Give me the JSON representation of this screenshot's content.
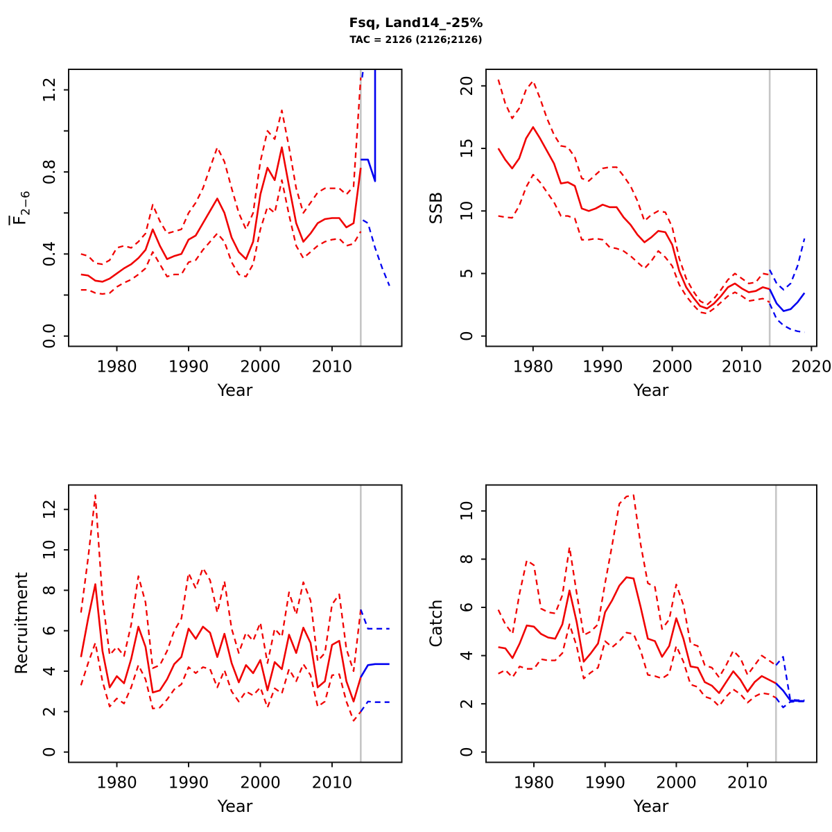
{
  "header": {
    "title": "Fsq, Land14_-25%",
    "subtitle": "TAC = 2126 (2126;2126)"
  },
  "colors": {
    "historical": "#f00000",
    "forecast": "#0000f0",
    "forecast_divider": "#c6c6c6",
    "axis": "#111111"
  },
  "chart_data": [
    {
      "name": "f-bar-2-6",
      "type": "line",
      "xlabel": "Year",
      "ylabel": "F",
      "ylabel_sub": "2−6",
      "xlim": [
        1975,
        2018
      ],
      "ylim": [
        0,
        1.25
      ],
      "forecast_year": 2014,
      "xticks": [
        1980,
        1990,
        2000,
        2010
      ],
      "xtick_labels": [
        "1980",
        "1990",
        "2000",
        "2010"
      ],
      "yticks": [
        0,
        0.2,
        0.4,
        0.6,
        0.8,
        1.0,
        1.2
      ],
      "ytick_labels": [
        "0.0",
        "",
        "0.4",
        "",
        "0.8",
        "",
        "1.2"
      ],
      "legend": "none",
      "grid": false,
      "series": [
        {
          "name": "f-median-historical",
          "color": "#f00000",
          "dashed": false,
          "start_year": 1975,
          "values": [
            0.3,
            0.295,
            0.27,
            0.265,
            0.28,
            0.305,
            0.33,
            0.35,
            0.38,
            0.42,
            0.52,
            0.44,
            0.375,
            0.39,
            0.4,
            0.47,
            0.49,
            0.55,
            0.61,
            0.67,
            0.6,
            0.48,
            0.41,
            0.375,
            0.46,
            0.69,
            0.82,
            0.76,
            0.92,
            0.73,
            0.55,
            0.46,
            0.5,
            0.55,
            0.57,
            0.575,
            0.575,
            0.53,
            0.55,
            0.82
          ]
        },
        {
          "name": "f-upper-ci-historical",
          "color": "#f00000",
          "dashed": true,
          "start_year": 1975,
          "values": [
            0.4,
            0.39,
            0.355,
            0.35,
            0.37,
            0.43,
            0.44,
            0.43,
            0.46,
            0.5,
            0.64,
            0.56,
            0.5,
            0.51,
            0.52,
            0.6,
            0.65,
            0.72,
            0.82,
            0.92,
            0.85,
            0.72,
            0.6,
            0.52,
            0.6,
            0.85,
            1.0,
            0.96,
            1.1,
            0.92,
            0.72,
            0.6,
            0.65,
            0.7,
            0.72,
            0.72,
            0.72,
            0.69,
            0.73,
            1.26
          ]
        },
        {
          "name": "f-lower-ci-historical",
          "color": "#f00000",
          "dashed": true,
          "start_year": 1975,
          "values": [
            0.225,
            0.225,
            0.21,
            0.205,
            0.21,
            0.24,
            0.26,
            0.275,
            0.3,
            0.33,
            0.41,
            0.35,
            0.29,
            0.3,
            0.3,
            0.36,
            0.37,
            0.42,
            0.46,
            0.5,
            0.46,
            0.36,
            0.3,
            0.29,
            0.35,
            0.52,
            0.63,
            0.6,
            0.76,
            0.59,
            0.44,
            0.38,
            0.41,
            0.44,
            0.46,
            0.47,
            0.475,
            0.44,
            0.45,
            0.51
          ]
        },
        {
          "name": "f-median-forecast",
          "color": "#0000f0",
          "dashed": false,
          "points": [
            [
              2014,
              0.86
            ],
            [
              2015,
              0.86
            ],
            [
              2016,
              0.755
            ],
            [
              2016,
              1.5
            ]
          ]
        },
        {
          "name": "f-upper-ci-forecast",
          "color": "#0000f0",
          "dashed": true,
          "points": [
            [
              2014.2,
              1.26
            ],
            [
              2015,
              1.5
            ]
          ]
        },
        {
          "name": "f-lower-ci-forecast",
          "color": "#0000f0",
          "dashed": true,
          "points": [
            [
              2014.3,
              0.565
            ],
            [
              2015,
              0.55
            ],
            [
              2016,
              0.43
            ],
            [
              2017,
              0.33
            ],
            [
              2018,
              0.245
            ]
          ]
        }
      ]
    },
    {
      "name": "ssb",
      "type": "line",
      "xlabel": "Year",
      "ylabel": "SSB",
      "ylabel_sub": "",
      "xlim": [
        1975,
        2019
      ],
      "ylim": [
        0,
        20.5
      ],
      "forecast_year": 2014,
      "xticks": [
        1980,
        1990,
        2000,
        2010,
        2020
      ],
      "xtick_labels": [
        "1980",
        "1990",
        "2000",
        "2010",
        "2020"
      ],
      "yticks": [
        0,
        5,
        10,
        15,
        20
      ],
      "ytick_labels": [
        "0",
        "5",
        "10",
        "15",
        "20"
      ],
      "legend": "none",
      "grid": false,
      "series": [
        {
          "name": "ssb-median-historical",
          "color": "#f00000",
          "dashed": false,
          "start_year": 1975,
          "values": [
            15.0,
            14.1,
            13.4,
            14.2,
            15.8,
            16.7,
            15.8,
            14.8,
            13.8,
            12.2,
            12.3,
            12.0,
            10.2,
            10.0,
            10.2,
            10.5,
            10.3,
            10.3,
            9.5,
            8.9,
            8.1,
            7.5,
            7.9,
            8.4,
            8.3,
            7.3,
            5.2,
            3.9,
            3.1,
            2.4,
            2.2,
            2.6,
            3.2,
            3.9,
            4.2,
            3.8,
            3.5,
            3.6,
            3.9,
            3.75
          ]
        },
        {
          "name": "ssb-upper-ci-historical",
          "color": "#f00000",
          "dashed": true,
          "start_year": 1975,
          "values": [
            20.5,
            18.6,
            17.4,
            18.2,
            19.7,
            20.4,
            19.0,
            17.4,
            16.1,
            15.2,
            15.1,
            14.3,
            12.6,
            12.4,
            12.9,
            13.4,
            13.5,
            13.5,
            12.8,
            12.0,
            10.8,
            9.2,
            9.7,
            10.0,
            9.9,
            8.7,
            6.2,
            4.6,
            3.6,
            2.8,
            2.5,
            3.0,
            3.7,
            4.5,
            5.0,
            4.6,
            4.2,
            4.3,
            5.0,
            4.9
          ]
        },
        {
          "name": "ssb-lower-ci-historical",
          "color": "#f00000",
          "dashed": true,
          "start_year": 1975,
          "values": [
            9.6,
            9.5,
            9.45,
            10.4,
            11.9,
            12.9,
            12.3,
            11.5,
            10.7,
            9.6,
            9.6,
            9.4,
            7.7,
            7.7,
            7.8,
            7.7,
            7.1,
            7.0,
            6.8,
            6.4,
            5.9,
            5.4,
            6.0,
            6.8,
            6.3,
            5.6,
            4.1,
            3.2,
            2.5,
            1.9,
            1.8,
            2.2,
            2.7,
            3.2,
            3.5,
            3.2,
            2.8,
            2.9,
            3.0,
            2.7
          ]
        },
        {
          "name": "ssb-median-forecast",
          "color": "#0000f0",
          "dashed": false,
          "points": [
            [
              2014,
              3.75
            ],
            [
              2015,
              2.6
            ],
            [
              2016,
              2.0
            ],
            [
              2017,
              2.15
            ],
            [
              2018,
              2.7
            ],
            [
              2019,
              3.45
            ]
          ]
        },
        {
          "name": "ssb-upper-ci-forecast",
          "color": "#0000f0",
          "dashed": true,
          "points": [
            [
              2014,
              5.3
            ],
            [
              2015,
              4.2
            ],
            [
              2016,
              3.7
            ],
            [
              2017,
              4.2
            ],
            [
              2018,
              5.6
            ],
            [
              2019,
              7.8
            ]
          ]
        },
        {
          "name": "ssb-lower-ci-forecast",
          "color": "#0000f0",
          "dashed": true,
          "points": [
            [
              2014,
              2.6
            ],
            [
              2015,
              1.35
            ],
            [
              2016,
              0.85
            ],
            [
              2017,
              0.55
            ],
            [
              2018,
              0.38
            ],
            [
              2019,
              0.3
            ]
          ]
        }
      ]
    },
    {
      "name": "recruitment",
      "type": "line",
      "xlabel": "Year",
      "ylabel": "Recruitment",
      "ylabel_sub": "",
      "xlim": [
        1975,
        2018
      ],
      "ylim": [
        0,
        12.7
      ],
      "forecast_year": 2014,
      "xticks": [
        1980,
        1990,
        2000,
        2010
      ],
      "xtick_labels": [
        "1980",
        "1990",
        "2000",
        "2010"
      ],
      "yticks": [
        0,
        2,
        4,
        6,
        8,
        10,
        12
      ],
      "ytick_labels": [
        "0",
        "2",
        "4",
        "6",
        "8",
        "10",
        "12"
      ],
      "legend": "none",
      "grid": false,
      "series": [
        {
          "name": "recruitment-median-historical",
          "color": "#f00000",
          "dashed": false,
          "start_year": 1975,
          "values": [
            4.7,
            6.6,
            8.3,
            5.0,
            3.2,
            3.75,
            3.4,
            4.6,
            6.2,
            5.2,
            2.95,
            3.05,
            3.6,
            4.35,
            4.7,
            6.1,
            5.6,
            6.2,
            5.9,
            4.7,
            5.85,
            4.4,
            3.45,
            4.3,
            3.9,
            4.55,
            3.05,
            4.45,
            4.1,
            5.8,
            4.9,
            6.15,
            5.4,
            3.2,
            3.5,
            5.3,
            5.5,
            3.5,
            2.5,
            3.7
          ]
        },
        {
          "name": "recruitment-upper-ci-historical",
          "color": "#f00000",
          "dashed": true,
          "start_year": 1975,
          "values": [
            6.9,
            9.6,
            12.7,
            7.6,
            4.8,
            5.2,
            4.75,
            6.3,
            8.7,
            7.4,
            4.15,
            4.3,
            5.0,
            6.0,
            6.6,
            8.85,
            8.1,
            9.1,
            8.5,
            6.9,
            8.45,
            6.1,
            4.9,
            5.9,
            5.5,
            6.4,
            4.4,
            6.1,
            5.7,
            7.9,
            6.8,
            8.4,
            7.5,
            4.5,
            4.9,
            7.3,
            7.8,
            5.1,
            4.0,
            7.05
          ]
        },
        {
          "name": "recruitment-lower-ci-historical",
          "color": "#f00000",
          "dashed": true,
          "start_year": 1975,
          "values": [
            3.3,
            4.4,
            5.4,
            3.5,
            2.25,
            2.65,
            2.4,
            3.2,
            4.3,
            3.6,
            2.15,
            2.2,
            2.6,
            3.1,
            3.35,
            4.2,
            3.9,
            4.2,
            4.1,
            3.2,
            4.05,
            3.0,
            2.5,
            3.0,
            2.8,
            3.2,
            2.2,
            3.15,
            2.9,
            4.1,
            3.5,
            4.35,
            3.8,
            2.25,
            2.5,
            3.8,
            3.85,
            2.5,
            1.55,
            2.0
          ]
        },
        {
          "name": "recruitment-median-forecast",
          "color": "#0000f0",
          "dashed": false,
          "points": [
            [
              2014,
              3.7
            ],
            [
              2015,
              4.3
            ],
            [
              2016,
              4.35
            ],
            [
              2017,
              4.35
            ],
            [
              2018,
              4.35
            ]
          ]
        },
        {
          "name": "recruitment-upper-ci-forecast",
          "color": "#0000f0",
          "dashed": true,
          "points": [
            [
              2014,
              7.05
            ],
            [
              2015,
              6.1
            ],
            [
              2016,
              6.1
            ],
            [
              2017,
              6.1
            ],
            [
              2018,
              6.1
            ]
          ]
        },
        {
          "name": "recruitment-lower-ci-forecast",
          "color": "#0000f0",
          "dashed": true,
          "points": [
            [
              2014,
              2.0
            ],
            [
              2015,
              2.5
            ],
            [
              2016,
              2.47
            ],
            [
              2017,
              2.47
            ],
            [
              2018,
              2.47
            ]
          ]
        }
      ]
    },
    {
      "name": "catch",
      "type": "line",
      "xlabel": "Year",
      "ylabel": "Catch",
      "ylabel_sub": "",
      "xlim": [
        1975,
        2018
      ],
      "ylim": [
        0,
        10.65
      ],
      "forecast_year": 2014,
      "xticks": [
        1980,
        1990,
        2000,
        2010
      ],
      "xtick_labels": [
        "1980",
        "1990",
        "2000",
        "2010"
      ],
      "yticks": [
        0,
        2,
        4,
        6,
        8,
        10
      ],
      "ytick_labels": [
        "0",
        "2",
        "4",
        "6",
        "8",
        "10"
      ],
      "legend": "none",
      "grid": false,
      "series": [
        {
          "name": "catch-median-historical",
          "color": "#f00000",
          "dashed": false,
          "start_year": 1975,
          "values": [
            4.35,
            4.3,
            3.9,
            4.5,
            5.25,
            5.2,
            4.9,
            4.75,
            4.7,
            5.3,
            6.7,
            5.4,
            3.75,
            4.1,
            4.5,
            5.8,
            6.3,
            6.9,
            7.25,
            7.2,
            6.0,
            4.7,
            4.6,
            3.95,
            4.4,
            5.55,
            4.7,
            3.55,
            3.5,
            2.9,
            2.75,
            2.45,
            2.9,
            3.35,
            3.0,
            2.5,
            2.9,
            3.15,
            3.0,
            2.85
          ]
        },
        {
          "name": "catch-upper-ci-historical",
          "color": "#f00000",
          "dashed": true,
          "start_year": 1975,
          "values": [
            5.9,
            5.3,
            4.9,
            6.6,
            7.95,
            7.75,
            5.95,
            5.8,
            5.75,
            6.5,
            8.5,
            6.6,
            4.85,
            5.0,
            5.3,
            7.0,
            8.6,
            10.3,
            10.6,
            10.65,
            8.6,
            7.0,
            6.85,
            5.1,
            5.5,
            6.95,
            6.1,
            4.5,
            4.4,
            3.6,
            3.5,
            3.1,
            3.6,
            4.2,
            3.9,
            3.2,
            3.6,
            4.0,
            3.8,
            3.6
          ]
        },
        {
          "name": "catch-lower-ci-historical",
          "color": "#f00000",
          "dashed": true,
          "start_year": 1975,
          "values": [
            3.25,
            3.4,
            3.1,
            3.55,
            3.45,
            3.45,
            3.85,
            3.8,
            3.8,
            4.1,
            5.3,
            4.4,
            3.05,
            3.3,
            3.5,
            4.6,
            4.35,
            4.6,
            4.95,
            4.9,
            4.2,
            3.2,
            3.15,
            3.05,
            3.25,
            4.4,
            3.75,
            2.8,
            2.7,
            2.3,
            2.2,
            1.9,
            2.3,
            2.6,
            2.4,
            2.05,
            2.3,
            2.45,
            2.4,
            2.25
          ]
        },
        {
          "name": "catch-median-forecast",
          "color": "#0000f0",
          "dashed": false,
          "points": [
            [
              2014,
              2.85
            ],
            [
              2015,
              2.55
            ],
            [
              2016,
              2.14
            ],
            [
              2017,
              2.12
            ],
            [
              2018,
              2.12
            ]
          ]
        },
        {
          "name": "catch-upper-ci-forecast",
          "color": "#0000f0",
          "dashed": true,
          "points": [
            [
              2014,
              3.6
            ],
            [
              2015,
              3.95
            ],
            [
              2016,
              2.17
            ],
            [
              2017,
              2.15
            ],
            [
              2018,
              2.15
            ]
          ]
        },
        {
          "name": "catch-lower-ci-forecast",
          "color": "#0000f0",
          "dashed": true,
          "points": [
            [
              2014,
              2.25
            ],
            [
              2015,
              1.85
            ],
            [
              2016,
              2.08
            ],
            [
              2017,
              2.1
            ],
            [
              2018,
              2.1
            ]
          ]
        }
      ]
    }
  ]
}
